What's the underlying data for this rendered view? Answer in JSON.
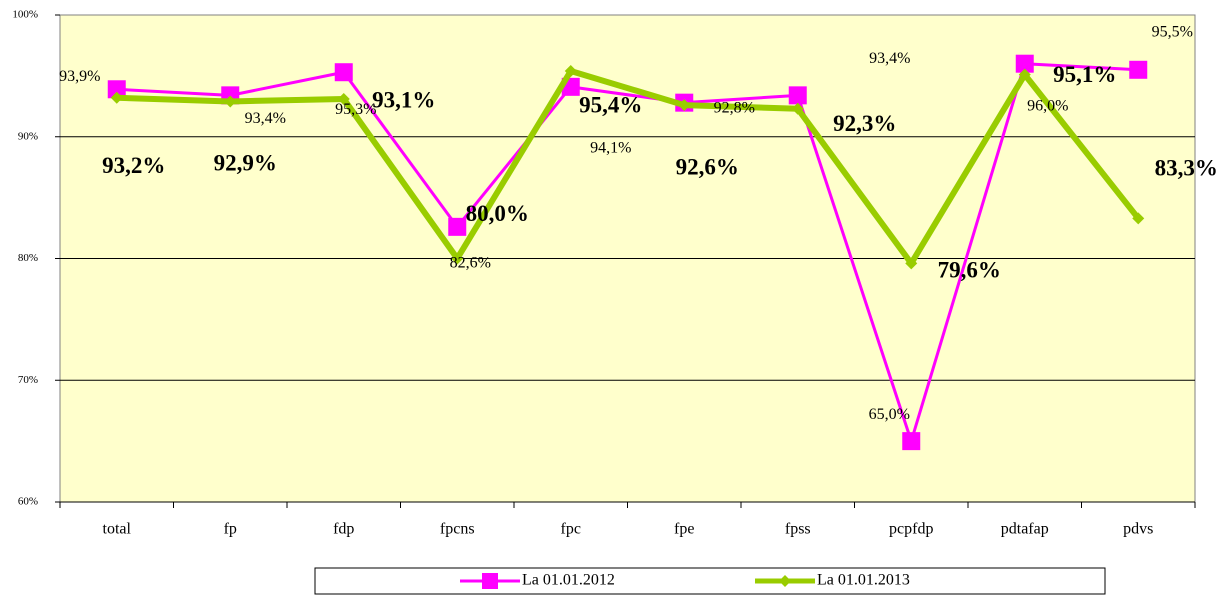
{
  "chart_data": {
    "type": "line",
    "categories": [
      "total",
      "fp",
      "fdp",
      "fpcns",
      "fpc",
      "fpe",
      "fpss",
      "pcpfdp",
      "pdtafap",
      "pdvs"
    ],
    "series": [
      {
        "name": "La 01.01.2012",
        "color": "#ff00ff",
        "values": [
          93.9,
          93.4,
          95.3,
          82.6,
          94.1,
          92.8,
          93.4,
          65.0,
          96.0,
          95.5
        ],
        "value_labels": [
          "93,9%",
          "93,4%",
          "95,3%",
          "82,6%",
          "94,1%",
          "92,8%",
          "93,4%",
          "65,0%",
          "96,0%",
          "95,5%"
        ]
      },
      {
        "name": "La 01.01.2013",
        "color": "#99cc00",
        "values": [
          93.2,
          92.9,
          93.1,
          80.0,
          95.4,
          92.6,
          92.3,
          79.6,
          95.1,
          83.3
        ],
        "value_labels": [
          "93,2%",
          "92,9%",
          "93,1%",
          "80,0%",
          "95,4%",
          "92,6%",
          "92,3%",
          "79,6%",
          "95,1%",
          "83,3%"
        ]
      }
    ],
    "ylim": [
      60,
      100
    ],
    "yticks": [
      {
        "value": 60,
        "label": "60%"
      },
      {
        "value": 70,
        "label": "70%"
      },
      {
        "value": 80,
        "label": "80%"
      },
      {
        "value": 90,
        "label": "90%"
      },
      {
        "value": 100,
        "label": "100%"
      }
    ],
    "grid": true,
    "legend": "bottom",
    "background": "#ffffcc"
  }
}
